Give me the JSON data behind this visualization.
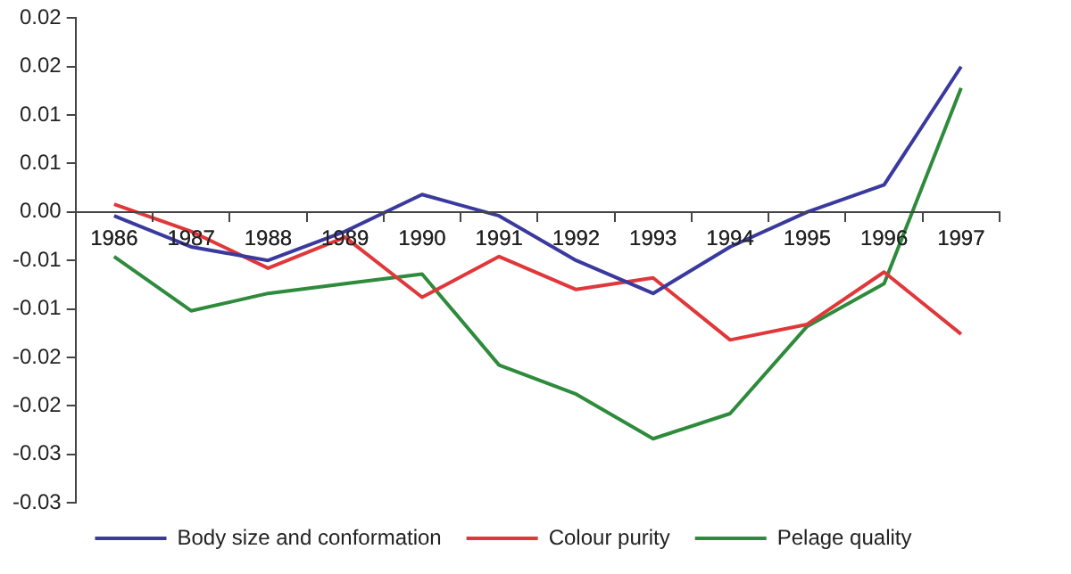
{
  "chart_data": {
    "type": "line",
    "categories": [
      "1986",
      "1987",
      "1988",
      "1989",
      "1990",
      "1991",
      "1992",
      "1993",
      "1994",
      "1995",
      "1996",
      "1997"
    ],
    "series": [
      {
        "name": "Body size and conformation",
        "color": "#3a3a9e",
        "values": [
          -0.0004,
          -0.0036,
          -0.005,
          -0.002,
          0.0018,
          -0.0004,
          -0.005,
          -0.0084,
          -0.0036,
          0,
          0.0028,
          0.015
        ]
      },
      {
        "name": "Colour purity",
        "color": "#e0383a",
        "values": [
          0.0008,
          -0.002,
          -0.0058,
          -0.0026,
          -0.0088,
          -0.0046,
          -0.008,
          -0.0068,
          -0.0132,
          -0.0116,
          -0.0062,
          -0.0126
        ]
      },
      {
        "name": "Pelage quality",
        "color": "#2e8b3c",
        "values": [
          -0.0046,
          -0.0102,
          -0.0084,
          -0.0074,
          -0.0064,
          -0.0158,
          -0.0188,
          -0.0234,
          -0.0208,
          -0.0118,
          -0.0074,
          0.0128
        ]
      }
    ],
    "ylim": [
      -0.03,
      0.02
    ],
    "yticks": [
      {
        "value": 0.02,
        "label": "0.02"
      },
      {
        "value": 0.015,
        "label": "0.02"
      },
      {
        "value": 0.01,
        "label": "0.01"
      },
      {
        "value": 0.005,
        "label": "0.01"
      },
      {
        "value": 0,
        "label": "0.00"
      },
      {
        "value": -0.005,
        "label": "-0.01"
      },
      {
        "value": -0.01,
        "label": "-0.01"
      },
      {
        "value": -0.015,
        "label": "-0.02"
      },
      {
        "value": -0.02,
        "label": "-0.02"
      },
      {
        "value": -0.025,
        "label": "-0.03"
      },
      {
        "value": -0.03,
        "label": "-0.03"
      }
    ],
    "grid": false,
    "legend": "bottom",
    "marker": "none",
    "line_style": "solid"
  }
}
